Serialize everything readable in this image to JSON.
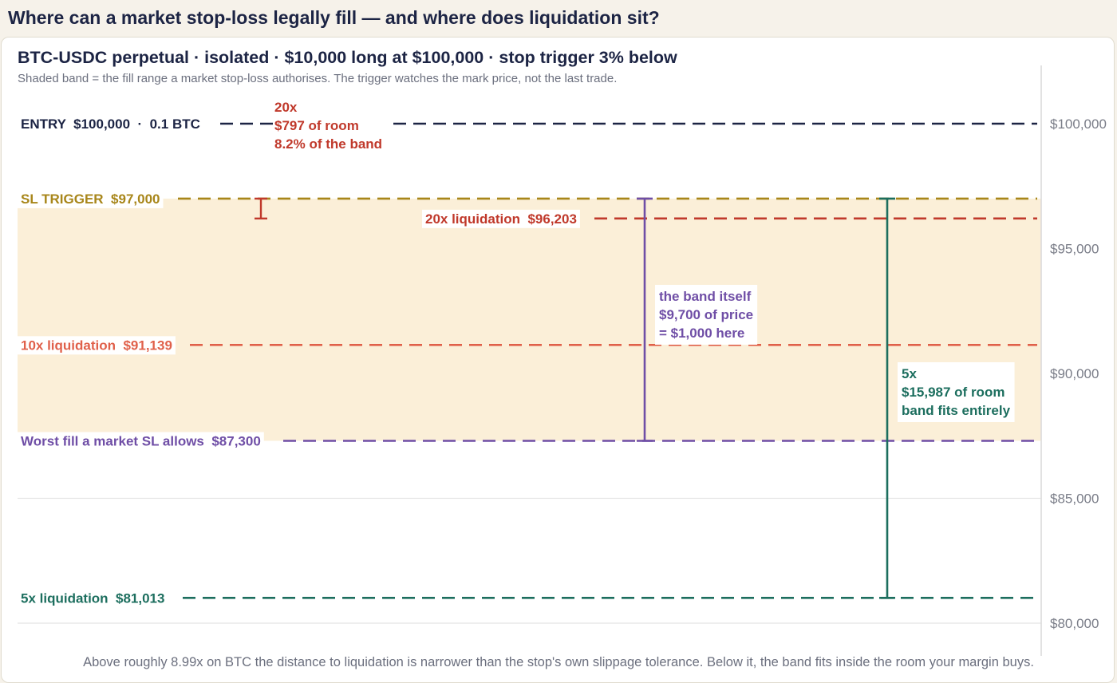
{
  "page": {
    "title": "Where can a market stop-loss legally fill — and where does liquidation sit?",
    "footnote": "Above roughly 8.99x on BTC the distance to liquidation is narrower than the stop's own slippage tolerance. Below it, the band fits inside the room your margin buys."
  },
  "colors": {
    "entry": "#1c2444",
    "trigger": "#a8861a",
    "liq20": "#c0392b",
    "liq10": "#e0604a",
    "worst": "#6f4ea6",
    "liq5": "#1c6e5e",
    "band": "#fbefd8",
    "axis": "#7a7d88"
  },
  "chart_data": {
    "type": "price-level chart",
    "title": "BTC-USDC perpetual  ·  isolated  ·  $10,000 long at $100,000  ·  stop trigger 3% below",
    "subtitle": "Shaded band = the fill range a market stop-loss authorises. The trigger watches the mark price, not the last trade.",
    "ylim": [
      79500,
      101000
    ],
    "y_ticks": [
      {
        "value": 100000,
        "label": "$100,000"
      },
      {
        "value": 95000,
        "label": "$95,000"
      },
      {
        "value": 90000,
        "label": "$90,000"
      },
      {
        "value": 85000,
        "label": "$85,000"
      },
      {
        "value": 80000,
        "label": "$80,000"
      }
    ],
    "gridlines": [
      85000,
      80000
    ],
    "band": {
      "from": 97000,
      "to": 87300
    },
    "levels": [
      {
        "id": "entry",
        "value": 100000,
        "label": "ENTRY  $100,000  ·  0.1 BTC",
        "colorKey": "entry"
      },
      {
        "id": "trigger",
        "value": 97000,
        "label": "SL TRIGGER  $97,000",
        "colorKey": "trigger"
      },
      {
        "id": "liq20",
        "value": 96203,
        "label": "20x liquidation  $96,203",
        "colorKey": "liq20"
      },
      {
        "id": "liq10",
        "value": 91139,
        "label": "10x liquidation  $91,139",
        "colorKey": "liq10"
      },
      {
        "id": "worst",
        "value": 87300,
        "label": "Worst fill a market SL allows  $87,300",
        "colorKey": "worst"
      },
      {
        "id": "liq5",
        "value": 81013,
        "label": "5x liquidation  $81,013",
        "colorKey": "liq5"
      }
    ],
    "brackets": [
      {
        "id": "room20",
        "from": 97000,
        "to": 96203,
        "colorKey": "liq20",
        "lines": [
          "20x",
          "$797 of room",
          "8.2% of the band"
        ]
      },
      {
        "id": "band",
        "from": 97000,
        "to": 87300,
        "colorKey": "worst",
        "lines": [
          "the band itself",
          "$9,700 of price",
          "= $1,000 here"
        ]
      },
      {
        "id": "room5",
        "from": 97000,
        "to": 81013,
        "colorKey": "liq5",
        "lines": [
          "5x",
          "$15,987 of room",
          "band fits entirely"
        ]
      }
    ]
  }
}
